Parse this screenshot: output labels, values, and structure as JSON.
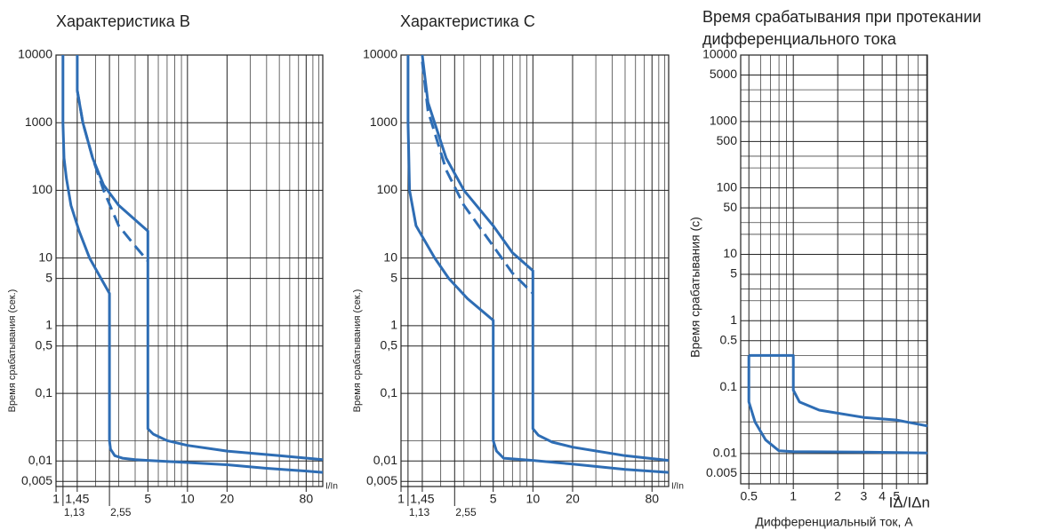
{
  "chart_data": [
    {
      "type": "line",
      "title": "Характеристика B",
      "x_label": "I/In",
      "y_label": "Время срабатывания (сек.)",
      "xscale": "log",
      "yscale": "log",
      "grid": true,
      "xlim": [
        1,
        107
      ],
      "ylim": [
        0.0042,
        10000
      ],
      "xticks": [
        1,
        {
          "value": 1.13,
          "label": "1,13"
        },
        {
          "value": 1.45,
          "label": "1,45"
        },
        {
          "value": 2.55,
          "label": "2,55"
        },
        5,
        10,
        20,
        80
      ],
      "yticks": [
        10000,
        1000,
        100,
        10,
        5,
        1,
        {
          "value": 0.5,
          "label": "0,5"
        },
        {
          "value": 0.1,
          "label": "0,1"
        },
        {
          "value": 0.01,
          "label": "0,01"
        },
        {
          "value": 0.005,
          "label": "0,005"
        }
      ],
      "xminor": [
        2,
        3,
        4,
        6,
        7,
        8,
        9,
        30,
        40,
        50,
        60,
        70,
        90,
        100
      ],
      "yminor": [
        500,
        0.02
      ],
      "series": [
        {
          "color": "#2e6db4",
          "x": [
            1.13,
            1.13,
            1.15,
            1.2,
            1.3,
            1.5,
            1.8,
            2.2,
            2.55,
            2.55,
            2.6,
            2.8,
            3.2,
            4,
            5,
            10,
            20,
            40,
            80,
            107
          ],
          "values": [
            10000,
            1000,
            300,
            150,
            60,
            25,
            10,
            5,
            3,
            0.02,
            0.015,
            0.012,
            0.011,
            0.0105,
            0.0102,
            0.0095,
            0.0088,
            0.0078,
            0.0071,
            0.0068
          ]
        },
        {
          "color": "#2e6db4",
          "x": [
            1.45,
            1.45,
            1.6,
            1.9,
            2.3,
            3,
            5,
            5,
            5.5,
            7,
            10,
            20,
            50,
            107
          ],
          "values": [
            10000,
            3000,
            1000,
            300,
            120,
            60,
            25,
            0.03,
            0.025,
            0.02,
            0.017,
            0.014,
            0.012,
            0.0105
          ]
        },
        {
          "color": "#2e6db4",
          "dashed": true,
          "x": [
            1.45,
            1.6,
            1.9,
            2.3,
            3,
            4,
            5
          ],
          "values": [
            3000,
            1000,
            300,
            100,
            30,
            15,
            9
          ]
        }
      ]
    },
    {
      "type": "line",
      "title": "Характеристика C",
      "x_label": "I/In",
      "y_label": "Время срабатывания (сек.)",
      "xscale": "log",
      "yscale": "log",
      "grid": true,
      "xlim": [
        1,
        107
      ],
      "ylim": [
        0.0042,
        10000
      ],
      "xticks": [
        1,
        {
          "value": 1.13,
          "label": "1,13"
        },
        {
          "value": 1.45,
          "label": "1,45"
        },
        {
          "value": 2.55,
          "label": "2,55"
        },
        5,
        10,
        20,
        80
      ],
      "yticks": [
        10000,
        1000,
        100,
        10,
        5,
        1,
        {
          "value": 0.5,
          "label": "0,5"
        },
        {
          "value": 0.1,
          "label": "0,1"
        },
        {
          "value": 0.01,
          "label": "0,01"
        },
        {
          "value": 0.005,
          "label": "0,005"
        }
      ],
      "xminor": [
        2,
        3,
        4,
        6,
        7,
        8,
        9,
        30,
        40,
        50,
        60,
        70,
        90,
        100
      ],
      "yminor": [
        500,
        0.02
      ],
      "series": [
        {
          "color": "#2e6db4",
          "x": [
            1.13,
            1.13,
            1.16,
            1.3,
            1.8,
            2.3,
            3.2,
            5,
            5,
            5.3,
            6,
            10,
            20,
            50,
            107
          ],
          "values": [
            10000,
            1000,
            100,
            30,
            10,
            5,
            2.5,
            1.2,
            0.02,
            0.014,
            0.011,
            0.0102,
            0.009,
            0.0075,
            0.0068
          ]
        },
        {
          "color": "#2e6db4",
          "x": [
            1.45,
            1.6,
            2.2,
            3,
            5,
            7,
            10,
            10,
            11,
            14,
            20,
            50,
            107
          ],
          "values": [
            10000,
            2000,
            300,
            100,
            30,
            12,
            6.5,
            0.03,
            0.024,
            0.019,
            0.016,
            0.012,
            0.0102
          ]
        },
        {
          "color": "#2e6db4",
          "dashed": true,
          "x": [
            1.45,
            1.6,
            2.2,
            3,
            5,
            7,
            10
          ],
          "values": [
            8000,
            1500,
            200,
            60,
            15,
            6,
            3
          ]
        }
      ]
    },
    {
      "type": "line",
      "title": [
        "Время срабатывания при протекании",
        "дифференциального тока"
      ],
      "x_label": "IΔ/IΔn",
      "x_title": "Дифференциальный ток, А",
      "y_label": "Время срабатывания (с)",
      "xscale": "log",
      "yscale": "log",
      "grid": true,
      "xlim": [
        0.44,
        8.1
      ],
      "ylim": [
        0.0035,
        10000
      ],
      "xticks": [
        0.5,
        1,
        2,
        3,
        4,
        5
      ],
      "yticks": [
        10000,
        5000,
        1000,
        500,
        100,
        50,
        10,
        5,
        1,
        0.5,
        0.1,
        0.01,
        0.005
      ],
      "xminor": [
        0.6,
        0.7,
        0.8,
        0.9,
        6,
        7,
        8
      ],
      "yminor": [
        3000,
        2000,
        300,
        200,
        30,
        20,
        3,
        2,
        0.3,
        0.2,
        0.03,
        0.02
      ],
      "series": [
        {
          "color": "#2e6db4",
          "x": [
            0.5,
            1,
            1,
            1.1,
            1.5,
            3,
            5,
            8.1
          ],
          "values": [
            0.3,
            0.3,
            0.09,
            0.06,
            0.045,
            0.035,
            0.032,
            0.026
          ]
        },
        {
          "color": "#2e6db4",
          "x": [
            0.5,
            0.5,
            0.55,
            0.65,
            0.8,
            1,
            3,
            8.1
          ],
          "values": [
            0.3,
            0.06,
            0.03,
            0.016,
            0.011,
            0.0107,
            0.0105,
            0.0102
          ]
        }
      ]
    }
  ]
}
